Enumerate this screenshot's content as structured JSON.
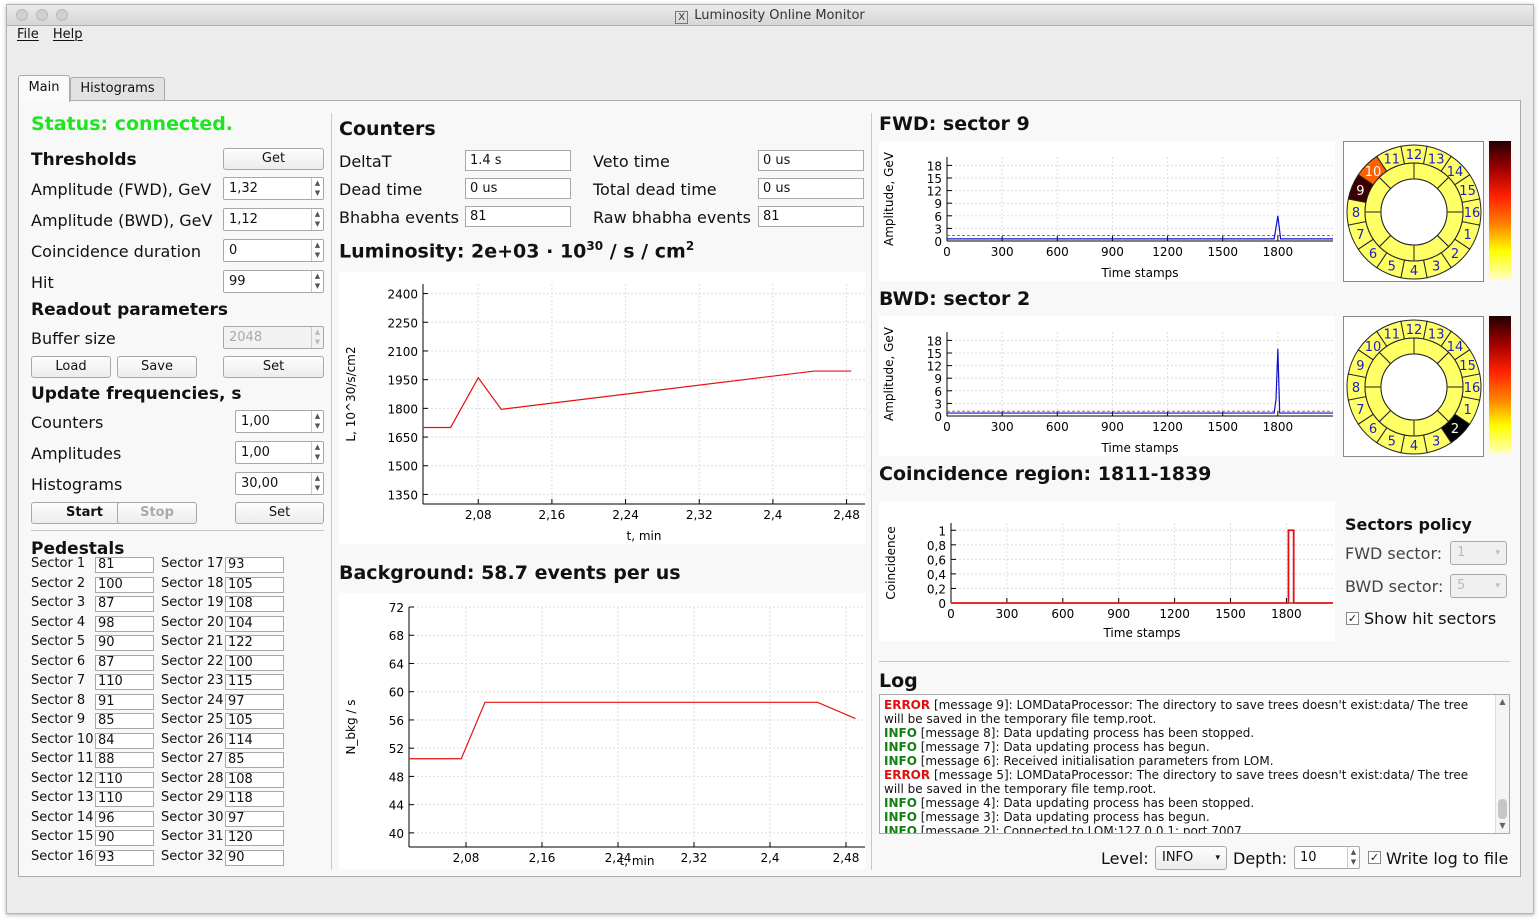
{
  "window": {
    "title": "Luminosity Online Monitor"
  },
  "menu": [
    "File",
    "Help"
  ],
  "tabs": [
    "Main",
    "Histograms"
  ],
  "status": "Status: connected.",
  "colors": {
    "status": "#1ee61e",
    "error": "#e01010",
    "info": "#108010",
    "plot_line": "#e81010",
    "amp_line": "#1010cc"
  },
  "thresholds": {
    "title": "Thresholds",
    "get": "Get",
    "rows": [
      {
        "label": "Amplitude (FWD), GeV",
        "value": "1,32"
      },
      {
        "label": "Amplitude (BWD), GeV",
        "value": "1,12"
      },
      {
        "label": "Coincidence duration",
        "value": "0"
      },
      {
        "label": "Hit",
        "value": "99"
      }
    ]
  },
  "readout": {
    "title": "Readout parameters",
    "buffer_label": "Buffer size",
    "buffer_value": "2048",
    "load": "Load",
    "save": "Save",
    "set": "Set"
  },
  "update": {
    "title": "Update frequencies, s",
    "rows": [
      {
        "label": "Counters",
        "value": "1,00"
      },
      {
        "label": "Amplitudes",
        "value": "1,00"
      },
      {
        "label": "Histograms",
        "value": "30,00"
      }
    ],
    "start": "Start",
    "stop": "Stop",
    "set": "Set"
  },
  "pedestals": {
    "title": "Pedestals",
    "left": [
      [
        "Sector 1",
        "81"
      ],
      [
        "Sector 2",
        "100"
      ],
      [
        "Sector 3",
        "87"
      ],
      [
        "Sector 4",
        "98"
      ],
      [
        "Sector 5",
        "90"
      ],
      [
        "Sector 6",
        "87"
      ],
      [
        "Sector 7",
        "110"
      ],
      [
        "Sector 8",
        "91"
      ],
      [
        "Sector 9",
        "85"
      ],
      [
        "Sector 10",
        "84"
      ],
      [
        "Sector 11",
        "88"
      ],
      [
        "Sector 12",
        "110"
      ],
      [
        "Sector 13",
        "110"
      ],
      [
        "Sector 14",
        "96"
      ],
      [
        "Sector 15",
        "90"
      ],
      [
        "Sector 16",
        "93"
      ]
    ],
    "right": [
      [
        "Sector 17",
        "93"
      ],
      [
        "Sector 18",
        "105"
      ],
      [
        "Sector 19",
        "108"
      ],
      [
        "Sector 20",
        "104"
      ],
      [
        "Sector 21",
        "122"
      ],
      [
        "Sector 22",
        "100"
      ],
      [
        "Sector 23",
        "115"
      ],
      [
        "Sector 24",
        "97"
      ],
      [
        "Sector 25",
        "105"
      ],
      [
        "Sector 26",
        "114"
      ],
      [
        "Sector 27",
        "85"
      ],
      [
        "Sector 28",
        "108"
      ],
      [
        "Sector 29",
        "118"
      ],
      [
        "Sector 30",
        "97"
      ],
      [
        "Sector 31",
        "120"
      ],
      [
        "Sector 32",
        "90"
      ]
    ]
  },
  "counters": {
    "title": "Counters",
    "items": [
      {
        "label": "DeltaT",
        "value": "1.4 s"
      },
      {
        "label": "Veto time",
        "value": "0 us"
      },
      {
        "label": "Dead time",
        "value": "0 us"
      },
      {
        "label": "Total dead time",
        "value": "0 us"
      },
      {
        "label": "Bhabha events",
        "value": "81"
      },
      {
        "label": "Raw bhabha events",
        "value": "81"
      }
    ]
  },
  "luminosity": {
    "prefix": "Luminosity: 2e+03 · 10",
    "exp1": "30",
    "mid": " / s / cm",
    "exp2": "2"
  },
  "background": {
    "title": "Background: 58.7 events per us"
  },
  "fwd": {
    "title": "FWD: sector 9"
  },
  "bwd": {
    "title": "BWD: sector 2"
  },
  "coincidence": {
    "title": "Coincidence region: 1811-1839"
  },
  "sectors_policy": {
    "title": "Sectors policy",
    "fwd_label": "FWD sector:",
    "fwd_value": "1",
    "bwd_label": "BWD sector:",
    "bwd_value": "5",
    "show_hits": "Show hit sectors"
  },
  "log": {
    "title": "Log",
    "level_label": "Level:",
    "level_value": "INFO",
    "depth_label": "Depth:",
    "depth_value": "10",
    "write_label": "Write log to file",
    "lines": [
      {
        "level": "ERROR",
        "text": " [message 9]: LOMDataProcessor: The directory to save trees doesn't exist:data/ The tree will be saved in the temporary file temp.root."
      },
      {
        "level": "INFO",
        "text": " [message 8]: Data updating process has been stopped."
      },
      {
        "level": "INFO",
        "text": " [message 7]: Data updating process has begun."
      },
      {
        "level": "INFO",
        "text": " [message 6]: Received initialisation parameters from LOM."
      },
      {
        "level": "ERROR",
        "text": " [message 5]: LOMDataProcessor: The directory to save trees doesn't exist:data/ The tree will be saved in the temporary file temp.root."
      },
      {
        "level": "INFO",
        "text": " [message 4]: Data updating process has been stopped."
      },
      {
        "level": "INFO",
        "text": " [message 3]: Data updating process has begun."
      },
      {
        "level": "INFO",
        "text": " [message 2]: Connected to LOM:127.0.0.1: port 7007"
      }
    ]
  },
  "chart_data": [
    {
      "type": "line",
      "title": "",
      "xlabel": "t, min",
      "ylabel": "L, 10^30/s/cm2",
      "xlim": [
        2.02,
        2.5
      ],
      "ylim": [
        1300,
        2450
      ],
      "xticks": [
        "2,08",
        "2,16",
        "2,24",
        "2,32",
        "2,4",
        "2,48"
      ],
      "yticks": [
        "1350",
        "1500",
        "1650",
        "1800",
        "1950",
        "2100",
        "2250",
        "2400"
      ],
      "x": [
        2.02,
        2.05,
        2.08,
        2.105,
        2.445,
        2.485
      ],
      "y": [
        1700,
        1700,
        1960,
        1795,
        1995,
        1995
      ]
    },
    {
      "type": "line",
      "title": "",
      "xlabel": "t, min",
      "ylabel": "N_bkg / s",
      "xlim": [
        2.02,
        2.5
      ],
      "ylim": [
        38,
        72
      ],
      "xticks": [
        "2,08",
        "2,16",
        "2,24",
        "2,32",
        "2,4",
        "2,48"
      ],
      "yticks": [
        "40",
        "44",
        "48",
        "52",
        "56",
        "60",
        "64",
        "68",
        "72"
      ],
      "x": [
        2.02,
        2.075,
        2.1,
        2.45,
        2.49
      ],
      "y": [
        50.5,
        50.5,
        58.5,
        58.5,
        56.2
      ]
    },
    {
      "type": "line",
      "title": "",
      "xlabel": "Time stamps",
      "ylabel": "Amplitude, GeV",
      "xlim": [
        0,
        2100
      ],
      "ylim": [
        0,
        20
      ],
      "xticks": [
        "0",
        "300",
        "600",
        "900",
        "1200",
        "1500",
        "1800"
      ],
      "yticks": [
        "0",
        "3",
        "6",
        "9",
        "12",
        "15",
        "18"
      ],
      "series": [
        {
          "x": [
            0,
            1780,
            1800,
            1815,
            1830,
            2100
          ],
          "y": [
            0.5,
            0.5,
            6,
            0.5,
            0.5,
            0.5
          ]
        }
      ],
      "threshold": 1.32
    },
    {
      "type": "line",
      "title": "",
      "xlabel": "Time stamps",
      "ylabel": "Amplitude, GeV",
      "xlim": [
        0,
        2100
      ],
      "ylim": [
        0,
        20
      ],
      "xticks": [
        "0",
        "300",
        "600",
        "900",
        "1200",
        "1500",
        "1800"
      ],
      "yticks": [
        "0",
        "3",
        "6",
        "9",
        "12",
        "15",
        "18"
      ],
      "series": [
        {
          "x": [
            0,
            1780,
            1790,
            1800,
            1810,
            2100
          ],
          "y": [
            0.7,
            0.7,
            4,
            16,
            0.7,
            0.7
          ]
        }
      ],
      "threshold": 1.12
    },
    {
      "type": "line",
      "title": "",
      "xlabel": "Time stamps",
      "ylabel": "Coincidence",
      "xlim": [
        0,
        2050
      ],
      "ylim": [
        0,
        1.1
      ],
      "xticks": [
        "0",
        "300",
        "600",
        "900",
        "1200",
        "1500",
        "1800"
      ],
      "yticks": [
        "0",
        "0,2",
        "0,4",
        "0,6",
        "0,8",
        "1"
      ],
      "x": [
        0,
        1811,
        1811,
        1839,
        1839,
        2050
      ],
      "y": [
        0,
        0,
        1,
        1,
        0,
        0
      ]
    }
  ],
  "sector_rings": [
    {
      "hit": [
        9,
        10
      ],
      "colors": {
        "9": "#3c0000",
        "10": "#ff6000"
      }
    },
    {
      "hit": [
        2
      ],
      "colors": {
        "2": "#000000"
      }
    }
  ]
}
